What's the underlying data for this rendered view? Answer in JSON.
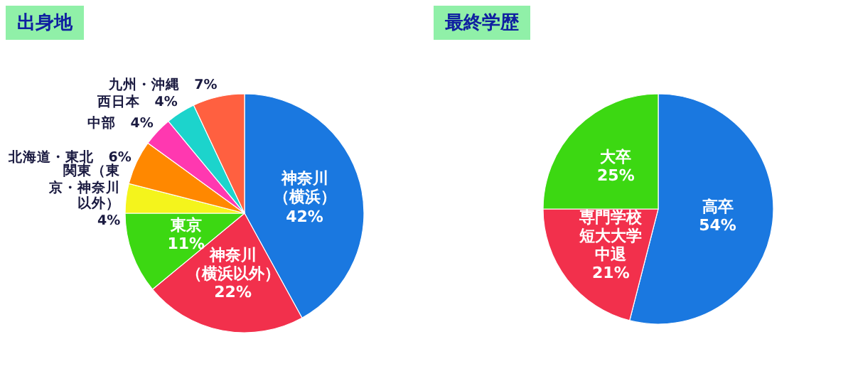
{
  "chart_data": [
    {
      "type": "pie",
      "title": "出身地",
      "categories": [
        "神奈川（横浜）",
        "神奈川（横浜以外）",
        "東京",
        "関東（東京・神奈川以外）",
        "北海道・東北",
        "中部",
        "西日本",
        "九州・沖縄"
      ],
      "values": [
        42,
        22,
        11,
        4,
        6,
        4,
        4,
        7
      ],
      "value_labels": [
        "42%",
        "22%",
        "11%",
        "4%",
        "6%",
        "4%",
        "4%",
        "7%"
      ],
      "colors": [
        "#1a78e0",
        "#f2304c",
        "#3cd812",
        "#f4f41c",
        "#ff8800",
        "#ff38b0",
        "#1cd4cc",
        "#ff6040"
      ]
    },
    {
      "type": "pie",
      "title": "最終学歴",
      "categories": [
        "高卒",
        "専門学校短大大学中退",
        "大卒"
      ],
      "values": [
        54,
        21,
        25
      ],
      "value_labels": [
        "54%",
        "21%",
        "25%"
      ],
      "colors": [
        "#1a78e0",
        "#f2304c",
        "#3cd812"
      ]
    }
  ]
}
